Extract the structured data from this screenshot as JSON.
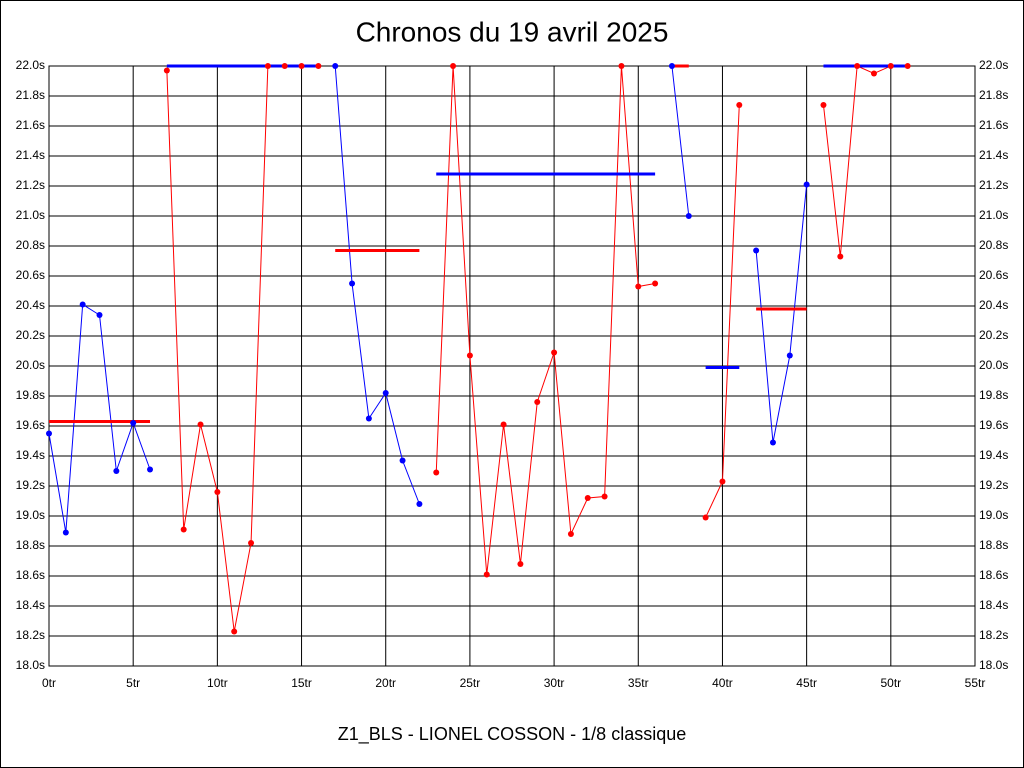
{
  "chart_data": {
    "type": "line",
    "title": "Chronos du 19 avril 2025",
    "subtitle": "Z1_BLS - LIONEL COSSON - 1/8 classique",
    "xlim": [
      0,
      55
    ],
    "ylim": [
      18.0,
      22.0
    ],
    "grid": true,
    "xticks": [
      {
        "value": 0,
        "label": "0tr"
      },
      {
        "value": 5,
        "label": "5tr"
      },
      {
        "value": 10,
        "label": "10tr"
      },
      {
        "value": 15,
        "label": "15tr"
      },
      {
        "value": 20,
        "label": "20tr"
      },
      {
        "value": 25,
        "label": "25tr"
      },
      {
        "value": 30,
        "label": "30tr"
      },
      {
        "value": 35,
        "label": "35tr"
      },
      {
        "value": 40,
        "label": "40tr"
      },
      {
        "value": 45,
        "label": "45tr"
      },
      {
        "value": 50,
        "label": "50tr"
      },
      {
        "value": 55,
        "label": "55tr"
      }
    ],
    "yticks": [
      {
        "value": 18.0,
        "label": "18.0s"
      },
      {
        "value": 18.2,
        "label": "18.2s"
      },
      {
        "value": 18.4,
        "label": "18.4s"
      },
      {
        "value": 18.6,
        "label": "18.6s"
      },
      {
        "value": 18.8,
        "label": "18.8s"
      },
      {
        "value": 19.0,
        "label": "19.0s"
      },
      {
        "value": 19.2,
        "label": "19.2s"
      },
      {
        "value": 19.4,
        "label": "19.4s"
      },
      {
        "value": 19.6,
        "label": "19.6s"
      },
      {
        "value": 19.8,
        "label": "19.8s"
      },
      {
        "value": 20.0,
        "label": "20.0s"
      },
      {
        "value": 20.2,
        "label": "20.2s"
      },
      {
        "value": 20.4,
        "label": "20.4s"
      },
      {
        "value": 20.6,
        "label": "20.6s"
      },
      {
        "value": 20.8,
        "label": "20.8s"
      },
      {
        "value": 21.0,
        "label": "21.0s"
      },
      {
        "value": 21.2,
        "label": "21.2s"
      },
      {
        "value": 21.4,
        "label": "21.4s"
      },
      {
        "value": 21.6,
        "label": "21.6s"
      },
      {
        "value": 21.8,
        "label": "21.8s"
      },
      {
        "value": 22.0,
        "label": "22.0s"
      }
    ],
    "series": [
      {
        "color": "#0000ff",
        "x": [
          0,
          1,
          2,
          3,
          4,
          5,
          6
        ],
        "values": [
          19.55,
          18.89,
          20.41,
          20.34,
          19.3,
          19.62,
          19.31
        ],
        "mean": 19.63,
        "mean_color": "#ff0000",
        "mean_x": [
          0,
          6
        ]
      },
      {
        "color": "#ff0000",
        "x": [
          7,
          8,
          9,
          10,
          11,
          12,
          13,
          14,
          15,
          16
        ],
        "values": [
          21.97,
          18.91,
          19.61,
          19.16,
          18.23,
          18.82,
          22.0,
          22.0,
          22.0,
          22.0
        ],
        "mean": 22.0,
        "mean_color": "#0000ff",
        "mean_x": [
          7,
          16
        ]
      },
      {
        "color": "#0000ff",
        "x": [
          17,
          18,
          19,
          20,
          21,
          22
        ],
        "values": [
          22.0,
          20.55,
          19.65,
          19.82,
          19.37,
          19.08
        ],
        "mean": 20.77,
        "mean_color": "#ff0000",
        "mean_x": [
          17,
          22
        ]
      },
      {
        "color": "#ff0000",
        "x": [
          23,
          24,
          25,
          26,
          27,
          28,
          29,
          30,
          31,
          32,
          33,
          34,
          35,
          36
        ],
        "values": [
          19.29,
          22.0,
          20.07,
          18.61,
          19.61,
          18.68,
          19.76,
          20.09,
          18.88,
          19.12,
          19.13,
          22.0,
          20.53,
          20.55
        ],
        "mean": 21.28,
        "mean_color": "#0000ff",
        "mean_x": [
          23,
          36
        ]
      },
      {
        "color": "#0000ff",
        "x": [
          37,
          38
        ],
        "values": [
          22.0,
          21.0
        ],
        "mean": 22.0,
        "mean_color": "#ff0000",
        "mean_x": [
          37,
          38
        ]
      },
      {
        "color": "#ff0000",
        "x": [
          39,
          40,
          41
        ],
        "values": [
          18.99,
          19.23,
          21.74
        ],
        "mean": 19.99,
        "mean_color": "#0000ff",
        "mean_x": [
          39,
          41
        ]
      },
      {
        "color": "#0000ff",
        "x": [
          42,
          43,
          44,
          45
        ],
        "values": [
          20.77,
          19.49,
          20.07,
          21.21
        ],
        "mean": 20.38,
        "mean_color": "#ff0000",
        "mean_x": [
          42,
          45
        ]
      },
      {
        "color": "#ff0000",
        "x": [
          46,
          47,
          48,
          49,
          50,
          51
        ],
        "values": [
          21.74,
          20.73,
          22.0,
          21.95,
          22.0,
          22.0
        ],
        "mean": 22.0,
        "mean_color": "#0000ff",
        "mean_x": [
          46,
          51
        ]
      }
    ]
  }
}
